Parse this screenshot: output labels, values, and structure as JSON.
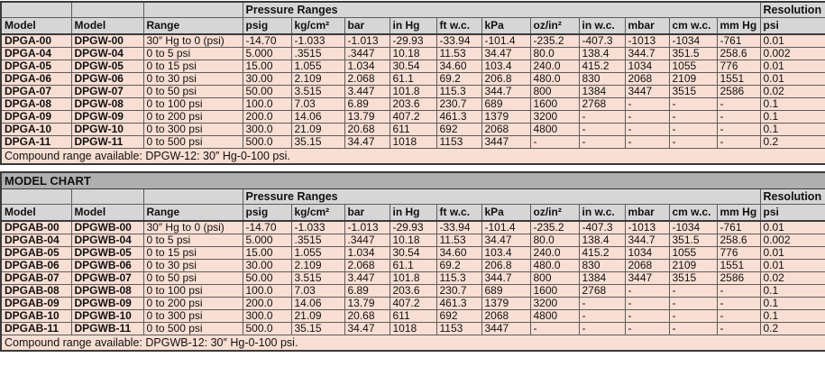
{
  "colors": {
    "header_bg": "#d6d6d6",
    "title_band_bg": "#afafaf",
    "data_row_bg": "#f9ded3",
    "border": "#3a3a3a",
    "text": "#111111"
  },
  "column_keys": [
    "model-a",
    "model-b",
    "range",
    "psig",
    "kg-cm2",
    "bar",
    "in-hg",
    "ft-wc",
    "kpa",
    "oz-in2",
    "in-wc",
    "mbar",
    "cm-wc",
    "mm-hg",
    "psi-resolution"
  ],
  "tables": [
    {
      "title": "",
      "group_header": "Pressure Ranges",
      "resolution_header": "Resolution",
      "columns": [
        "Model",
        "Model",
        "Range",
        "psig",
        "kg/cm²",
        "bar",
        "in Hg",
        "ft w.c.",
        "kPa",
        "oz/in²",
        "in w.c.",
        "mbar",
        "cm w.c.",
        "mm Hg",
        "psi"
      ],
      "rows": [
        [
          "DPGA-00",
          "DPGW-00",
          "30″ Hg to 0 (psi)",
          "-14.70",
          "-1.033",
          "-1.013",
          "-29.93",
          "-33.94",
          "-101.4",
          "-235.2",
          "-407.3",
          "-1013",
          "-1034",
          "-761",
          "0.01"
        ],
        [
          "DPGA-04",
          "DPGW-04",
          "0 to 5 psi",
          "5.000",
          ".3515",
          ".3447",
          "10.18",
          "11.53",
          "34.47",
          "80.0",
          "138.4",
          "344.7",
          "351.5",
          "258.6",
          "0.002"
        ],
        [
          "DPGA-05",
          "DPGW-05",
          "0 to 15 psi",
          "15.00",
          "1.055",
          "1.034",
          "30.54",
          "34.60",
          "103.4",
          "240.0",
          "415.2",
          "1034",
          "1055",
          "776",
          "0.01"
        ],
        [
          "DPGA-06",
          "DPGW-06",
          "0 to 30 psi",
          "30.00",
          "2.109",
          "2.068",
          "61.1",
          "69.2",
          "206.8",
          "480.0",
          "830",
          "2068",
          "2109",
          "1551",
          "0.01"
        ],
        [
          "DPGA-07",
          "DPGW-07",
          "0 to 50 psi",
          "50.00",
          "3.515",
          "3.447",
          "101.8",
          "115.3",
          "344.7",
          "800",
          "1384",
          "3447",
          "3515",
          "2586",
          "0.02"
        ],
        [
          "DPGA-08",
          "DPGW-08",
          "0 to 100 psi",
          "100.0",
          "7.03",
          "6.89",
          "203.6",
          "230.7",
          "689",
          "1600",
          "2768",
          "-",
          "-",
          "-",
          "0.1"
        ],
        [
          "DPGA-09",
          "DPGW-09",
          "0 to 200 psi",
          "200.0",
          "14.06",
          "13.79",
          "407.2",
          "461.3",
          "1379",
          "3200",
          "-",
          "-",
          "-",
          "-",
          "0.1"
        ],
        [
          "DPGA-10",
          "DPGW-10",
          "0 to 300 psi",
          "300.0",
          "21.09",
          "20.68",
          "611",
          "692",
          "2068",
          "4800",
          "-",
          "-",
          "-",
          "-",
          "0.1"
        ],
        [
          "DPGA-11",
          "DPGW-11",
          "0 to 500 psi",
          "500.0",
          "35.15",
          "34.47",
          "1018",
          "1153",
          "3447",
          "-",
          "-",
          "-",
          "-",
          "-",
          "0.2"
        ]
      ],
      "note": "Compound range available: DPGW-12: 30″ Hg-0-100 psi."
    },
    {
      "title": "MODEL CHART",
      "group_header": "Pressure Ranges",
      "resolution_header": "Resolution",
      "columns": [
        "Model",
        "Model",
        "Range",
        "psig",
        "kg/cm²",
        "bar",
        "in Hg",
        "ft w.c.",
        "kPa",
        "oz/in²",
        "in w.c.",
        "mbar",
        "cm w.c.",
        "mm Hg",
        "psi"
      ],
      "rows": [
        [
          "DPGAB-00",
          "DPGWB-00",
          "30″ Hg to 0 (psi)",
          "-14.70",
          "-1.033",
          "-1.013",
          "-29.93",
          "-33.94",
          "-101.4",
          "-235.2",
          "-407.3",
          "-1013",
          "-1034",
          "-761",
          "0.01"
        ],
        [
          "DPGAB-04",
          "DPGWB-04",
          "0 to 5 psi",
          "5.000",
          ".3515",
          ".3447",
          "10.18",
          "11.53",
          "34.47",
          "80.0",
          "138.4",
          "344.7",
          "351.5",
          "258.6",
          "0.002"
        ],
        [
          "DPGAB-05",
          "DPGWB-05",
          "0 to 15 psi",
          "15.00",
          "1.055",
          "1.034",
          "30.54",
          "34.60",
          "103.4",
          "240.0",
          "415.2",
          "1034",
          "1055",
          "776",
          "0.01"
        ],
        [
          "DPGAB-06",
          "DPGWB-06",
          "0 to 30 psi",
          "30.00",
          "2.109",
          "2.068",
          "61.1",
          "69.2",
          "206.8",
          "480.0",
          "830",
          "2068",
          "2109",
          "1551",
          "0.01"
        ],
        [
          "DPGAB-07",
          "DPGWB-07",
          "0 to 50 psi",
          "50.00",
          "3.515",
          "3.447",
          "101.8",
          "115.3",
          "344.7",
          "800",
          "1384",
          "3447",
          "3515",
          "2586",
          "0.02"
        ],
        [
          "DPGAB-08",
          "DPGWB-08",
          "0 to 100 psi",
          "100.0",
          "7.03",
          "6.89",
          "203.6",
          "230.7",
          "689",
          "1600",
          "2768",
          "-",
          "-",
          "-",
          "0.1"
        ],
        [
          "DPGAB-09",
          "DPGWB-09",
          "0 to 200 psi",
          "200.0",
          "14.06",
          "13.79",
          "407.2",
          "461.3",
          "1379",
          "3200",
          "-",
          "-",
          "-",
          "-",
          "0.1"
        ],
        [
          "DPGAB-10",
          "DPGWB-10",
          "0 to 300 psi",
          "300.0",
          "21.09",
          "20.68",
          "611",
          "692",
          "2068",
          "4800",
          "-",
          "-",
          "-",
          "-",
          "0.1"
        ],
        [
          "DPGAB-11",
          "DPGWB-11",
          "0 to 500 psi",
          "500.0",
          "35.15",
          "34.47",
          "1018",
          "1153",
          "3447",
          "-",
          "-",
          "-",
          "-",
          "-",
          "0.2"
        ]
      ],
      "note": "Compound range available: DPGWB-12: 30″ Hg-0-100 psi."
    }
  ]
}
